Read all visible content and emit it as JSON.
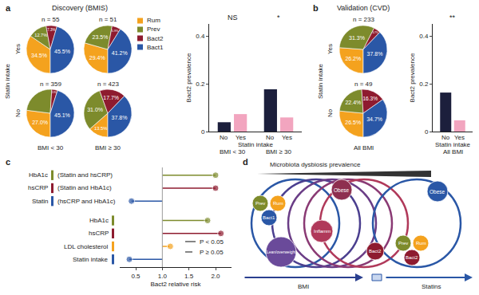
{
  "chart_data": [
    {
      "type": "pie",
      "panel": "a",
      "title": "Discovery (BMIS)",
      "y_label": "Statin intake",
      "rows": [
        "Yes",
        "No"
      ],
      "columns": [
        "BMI < 30",
        "BMI ≥ 30"
      ],
      "categories": [
        "Rum",
        "Prev",
        "Bact2",
        "Bact1"
      ],
      "colors": [
        "#f4a21e",
        "#7d8b2c",
        "#8e1b2f",
        "#2a57a6"
      ],
      "legend": "right",
      "data_labels": true,
      "pies": [
        {
          "row": "Yes",
          "column": "BMI < 30",
          "n": "n = 55",
          "values": [
            34.5,
            12.7,
            7.3,
            45.5
          ],
          "value_labels": [
            "34.5%",
            "12.7%",
            "7.3%",
            "45.5%"
          ]
        },
        {
          "row": "Yes",
          "column": "BMI ≥ 30",
          "n": "n = 51",
          "values": [
            29.4,
            23.5,
            5.9,
            41.2
          ],
          "value_labels": [
            "29.4%",
            "23.5%",
            "5.9%",
            "41.2%"
          ]
        },
        {
          "row": "No",
          "column": "BMI < 30",
          "n": "n = 359",
          "values": [
            27.0,
            24.0,
            3.9,
            45.1
          ],
          "value_labels": [
            "27.0%",
            null,
            "3.9%",
            "45.1%"
          ]
        },
        {
          "row": "No",
          "column": "BMI ≥ 30",
          "n": "n = 423",
          "values": [
            13.5,
            31.0,
            17.7,
            37.8
          ],
          "value_labels": [
            "13.5%",
            "31.0%",
            "17.7%",
            "37.8%"
          ]
        }
      ]
    },
    {
      "type": "bar",
      "y_label": "Bact2 prevalence",
      "x_label": "Statin intake",
      "categories": [
        "BMI < 30",
        "BMI ≥ 30"
      ],
      "series": [
        {
          "name": "No",
          "color": "#1c1f3c",
          "values": [
            0.039,
            0.177
          ]
        },
        {
          "name": "Yes",
          "color": "#f2a5bf",
          "values": [
            0.073,
            0.059
          ]
        }
      ],
      "ylim": [
        0,
        0.45
      ],
      "yticks": [
        0,
        0.2,
        0.4
      ],
      "annotations": [
        {
          "category": "BMI < 30",
          "text": "NS"
        },
        {
          "category": "BMI ≥ 30",
          "text": "*"
        }
      ]
    },
    {
      "type": "pie",
      "panel": "b",
      "title": "Validation (CVD)",
      "y_label": "Statin intake",
      "rows": [
        "Yes",
        "No"
      ],
      "columns": [
        "All BMI"
      ],
      "categories": [
        "Rum",
        "Prev",
        "Bact2",
        "Bact1"
      ],
      "colors": [
        "#f4a21e",
        "#7d8b2c",
        "#8e1b2f",
        "#2a57a6"
      ],
      "data_labels": true,
      "pies": [
        {
          "row": "Yes",
          "column": "All BMI",
          "n": "n = 233",
          "values": [
            26.2,
            31.3,
            4.7,
            37.8
          ],
          "value_labels": [
            "26.2%",
            "31.3%",
            "4.7%",
            "37.8%"
          ]
        },
        {
          "row": "No",
          "column": "All BMI",
          "n": "n = 49",
          "values": [
            26.5,
            22.4,
            16.3,
            34.7
          ],
          "value_labels": [
            "26.5%",
            "22.4%",
            "16.3%",
            "34.7%"
          ]
        }
      ]
    },
    {
      "type": "bar",
      "y_label": "Bact2 prevalence",
      "x_label": "Statin intake",
      "categories": [
        "All BMI"
      ],
      "series": [
        {
          "name": "No",
          "color": "#1c1f3c",
          "values": [
            0.163
          ]
        },
        {
          "name": "Yes",
          "color": "#f2a5bf",
          "values": [
            0.047
          ]
        }
      ],
      "ylim": [
        0,
        0.45
      ],
      "yticks": [
        0,
        0.2,
        0.4
      ],
      "annotations": [
        {
          "category": "All BMI",
          "text": "**"
        }
      ]
    },
    {
      "type": "lollipop",
      "panel": "c",
      "x_label": "Bact2 relative risk",
      "categories": [
        "HbA1c",
        "hsCRP",
        "Statin",
        "HbA1c",
        "hsCRP",
        "LDL cholesterol",
        "Statin intake"
      ],
      "adjustments": [
        "(Statin and hsCRP)",
        "(Statin and HbA1c)",
        "(hsCRP and HbA1c)",
        null,
        null,
        null,
        null
      ],
      "values": [
        2.0,
        2.0,
        0.42,
        1.85,
        2.1,
        1.15,
        0.38
      ],
      "colors": [
        "#7d8b2c",
        "#8e1b2f",
        "#2a57a6",
        "#7d8b2c",
        "#8e1b2f",
        "#f4a21e",
        "#2a57a6"
      ],
      "line_styles": [
        "solid",
        "solid",
        "solid",
        "solid",
        "solid",
        "dashed",
        "solid"
      ],
      "xlim": [
        0.2,
        2.3
      ],
      "xticks": [
        0.5,
        {
          "value": 1,
          "label": "1.0"
        },
        1.5,
        {
          "value": 2,
          "label": "2.0"
        }
      ],
      "reference": 1,
      "legend_items": [
        {
          "text": "P < 0.05",
          "line_style": "solid"
        },
        {
          "text": "P ≥ 0.05",
          "line_style": "dashed"
        }
      ]
    }
  ],
  "diagram": {
    "panel": "d",
    "title": "Microbiota dysbiosis prevalence",
    "nodes": [
      "Prev",
      "Rum",
      "Bact1",
      "Obese",
      "Inflamm",
      "Lean/overweight",
      "Bact2",
      "Obese",
      "Prev",
      "Rum",
      "Bact2"
    ],
    "arrows": [
      "BMI",
      "Statins"
    ]
  }
}
